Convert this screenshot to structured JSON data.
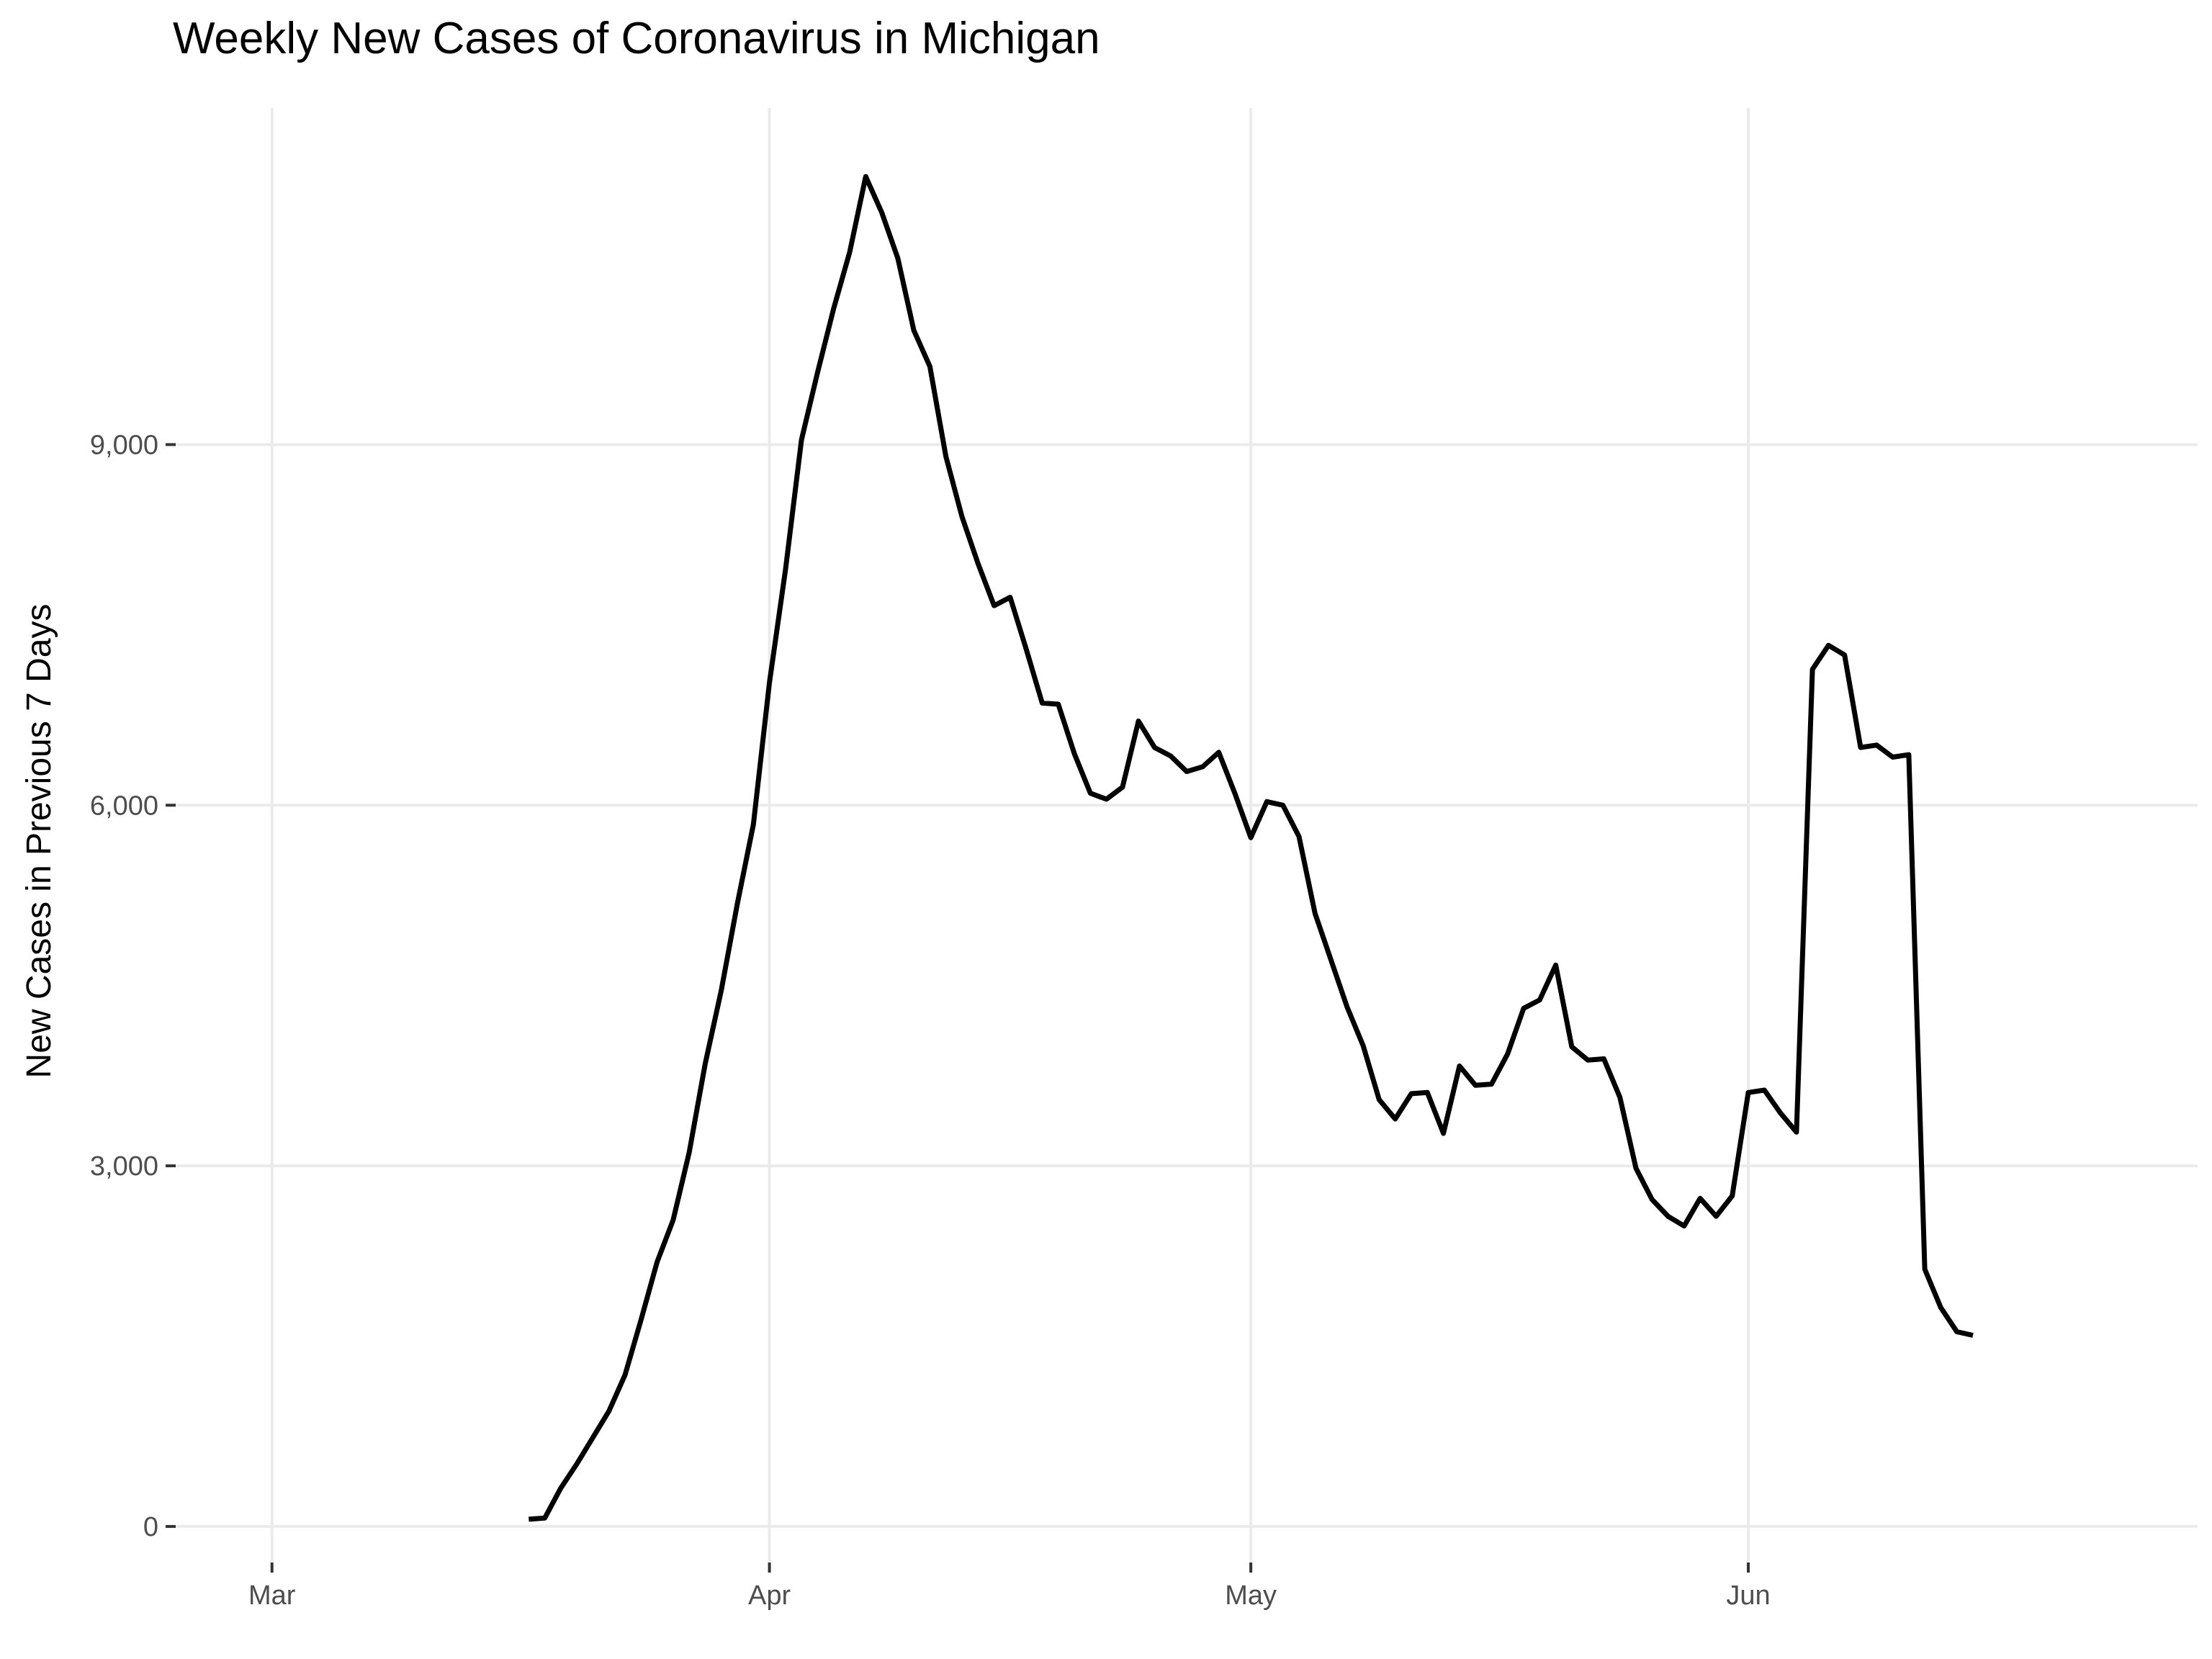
{
  "chart_data": {
    "type": "line",
    "title": "Weekly New Cases of Coronavirus in Michigan",
    "xlabel": "",
    "ylabel": "New Cases in Previous 7 Days",
    "grid": true,
    "legend": "none",
    "xlim": [
      "2020-02-24",
      "2020-06-29"
    ],
    "ylim": [
      -300,
      11800
    ],
    "x_ticks": [
      {
        "date": "2020-03-01",
        "label": "Mar"
      },
      {
        "date": "2020-04-01",
        "label": "Apr"
      },
      {
        "date": "2020-05-01",
        "label": "May"
      },
      {
        "date": "2020-06-01",
        "label": "Jun"
      }
    ],
    "y_ticks": [
      {
        "value": 0,
        "label": "0"
      },
      {
        "value": 3000,
        "label": "3,000"
      },
      {
        "value": 6000,
        "label": "6,000"
      },
      {
        "value": 9000,
        "label": "9,000"
      }
    ],
    "colors": {
      "line": "#000000",
      "grid": "#ebebeb",
      "axis_text": "#4d4d4d",
      "background": "#ffffff"
    },
    "series": [
      {
        "x": [
          "2020-03-17",
          "2020-03-18",
          "2020-03-19",
          "2020-03-20",
          "2020-03-21",
          "2020-03-22",
          "2020-03-23",
          "2020-03-24",
          "2020-03-25",
          "2020-03-26",
          "2020-03-27",
          "2020-03-28",
          "2020-03-29",
          "2020-03-30",
          "2020-03-31",
          "2020-04-01",
          "2020-04-02",
          "2020-04-03",
          "2020-04-04",
          "2020-04-05",
          "2020-04-06",
          "2020-04-07",
          "2020-04-08",
          "2020-04-09",
          "2020-04-10",
          "2020-04-11",
          "2020-04-12",
          "2020-04-13",
          "2020-04-14",
          "2020-04-15",
          "2020-04-16",
          "2020-04-17",
          "2020-04-18",
          "2020-04-19",
          "2020-04-20",
          "2020-04-21",
          "2020-04-22",
          "2020-04-23",
          "2020-04-24",
          "2020-04-25",
          "2020-04-26",
          "2020-04-27",
          "2020-04-28",
          "2020-04-29",
          "2020-04-30",
          "2020-05-01",
          "2020-05-02",
          "2020-05-03",
          "2020-05-04",
          "2020-05-05",
          "2020-05-06",
          "2020-05-07",
          "2020-05-08",
          "2020-05-09",
          "2020-05-10",
          "2020-05-11",
          "2020-05-12",
          "2020-05-13",
          "2020-05-14",
          "2020-05-15",
          "2020-05-16",
          "2020-05-17",
          "2020-05-18",
          "2020-05-19",
          "2020-05-20",
          "2020-05-21",
          "2020-05-22",
          "2020-05-23",
          "2020-05-24",
          "2020-05-25",
          "2020-05-26",
          "2020-05-27",
          "2020-05-28",
          "2020-05-29",
          "2020-05-30",
          "2020-05-31",
          "2020-06-01",
          "2020-06-02",
          "2020-06-03",
          "2020-06-04",
          "2020-06-05",
          "2020-06-06",
          "2020-06-07",
          "2020-06-08",
          "2020-06-09",
          "2020-06-10",
          "2020-06-11",
          "2020-06-12",
          "2020-06-13",
          "2020-06-14",
          "2020-06-15"
        ],
        "y": [
          60,
          70,
          320,
          520,
          740,
          960,
          1260,
          1720,
          2200,
          2550,
          3110,
          3850,
          4460,
          5180,
          5840,
          7020,
          7960,
          9040,
          9600,
          10130,
          10600,
          11230,
          10930,
          10550,
          9950,
          9650,
          8900,
          8400,
          8010,
          7660,
          7730,
          7300,
          6850,
          6840,
          6430,
          6100,
          6050,
          6150,
          6700,
          6480,
          6410,
          6280,
          6320,
          6440,
          6100,
          5730,
          6030,
          6000,
          5740,
          5100,
          4710,
          4320,
          4000,
          3550,
          3390,
          3600,
          3610,
          3270,
          3830,
          3670,
          3680,
          3930,
          4310,
          4380,
          4670,
          3990,
          3880,
          3890,
          3570,
          2980,
          2720,
          2580,
          2500,
          2730,
          2580,
          2750,
          3610,
          3630,
          3440,
          3280,
          7130,
          7330,
          7250,
          6480,
          6500,
          6400,
          6420,
          2140,
          1820,
          1620,
          1590
        ]
      }
    ]
  }
}
